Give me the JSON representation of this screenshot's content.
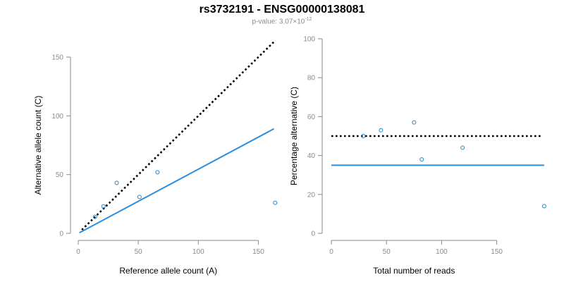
{
  "header": {
    "title": "rs3732191 - ENSG00000138081",
    "pvalue_prefix": "p-value: 3.07",
    "pvalue_times": "×10",
    "pvalue_exp": "-12"
  },
  "colors": {
    "points": "#1f86c9",
    "fit_line": "#2b8fe0",
    "reference_line": "#000000",
    "axis": "#8a8a8a"
  },
  "chart_data": [
    {
      "type": "scatter",
      "xlabel": "Reference allele count (A)",
      "ylabel": "Alternative allele count (C)",
      "xlim": [
        0,
        165
      ],
      "ylim": [
        0,
        150
      ],
      "xticks": [
        0,
        50,
        100,
        150
      ],
      "yticks": [
        0,
        50,
        100,
        150
      ],
      "points": {
        "x": [
          14,
          21,
          32,
          51,
          66,
          164
        ],
        "y": [
          14,
          23,
          43,
          31,
          52,
          26
        ]
      },
      "reference_line": {
        "style": "dotted",
        "x": [
          3,
          163
        ],
        "y": [
          3,
          163
        ]
      },
      "fit_line": {
        "style": "solid",
        "x": [
          1,
          163
        ],
        "y": [
          0.5,
          89
        ]
      }
    },
    {
      "type": "scatter",
      "xlabel": "Total number of reads",
      "ylabel": "Percentage alternative (C)",
      "xlim": [
        0,
        195
      ],
      "ylim": [
        0,
        100
      ],
      "xticks": [
        0,
        50,
        100,
        150
      ],
      "yticks": [
        0,
        20,
        40,
        60,
        80,
        100
      ],
      "points": {
        "x": [
          29,
          45,
          75,
          82,
          119,
          193
        ],
        "y": [
          50,
          53,
          57,
          38,
          44,
          14
        ]
      },
      "reference_line": {
        "style": "dotted",
        "x": [
          0,
          190
        ],
        "y": [
          50,
          50
        ]
      },
      "fit_line": {
        "style": "solid",
        "x": [
          0,
          193
        ],
        "y": [
          35,
          35
        ]
      }
    }
  ]
}
